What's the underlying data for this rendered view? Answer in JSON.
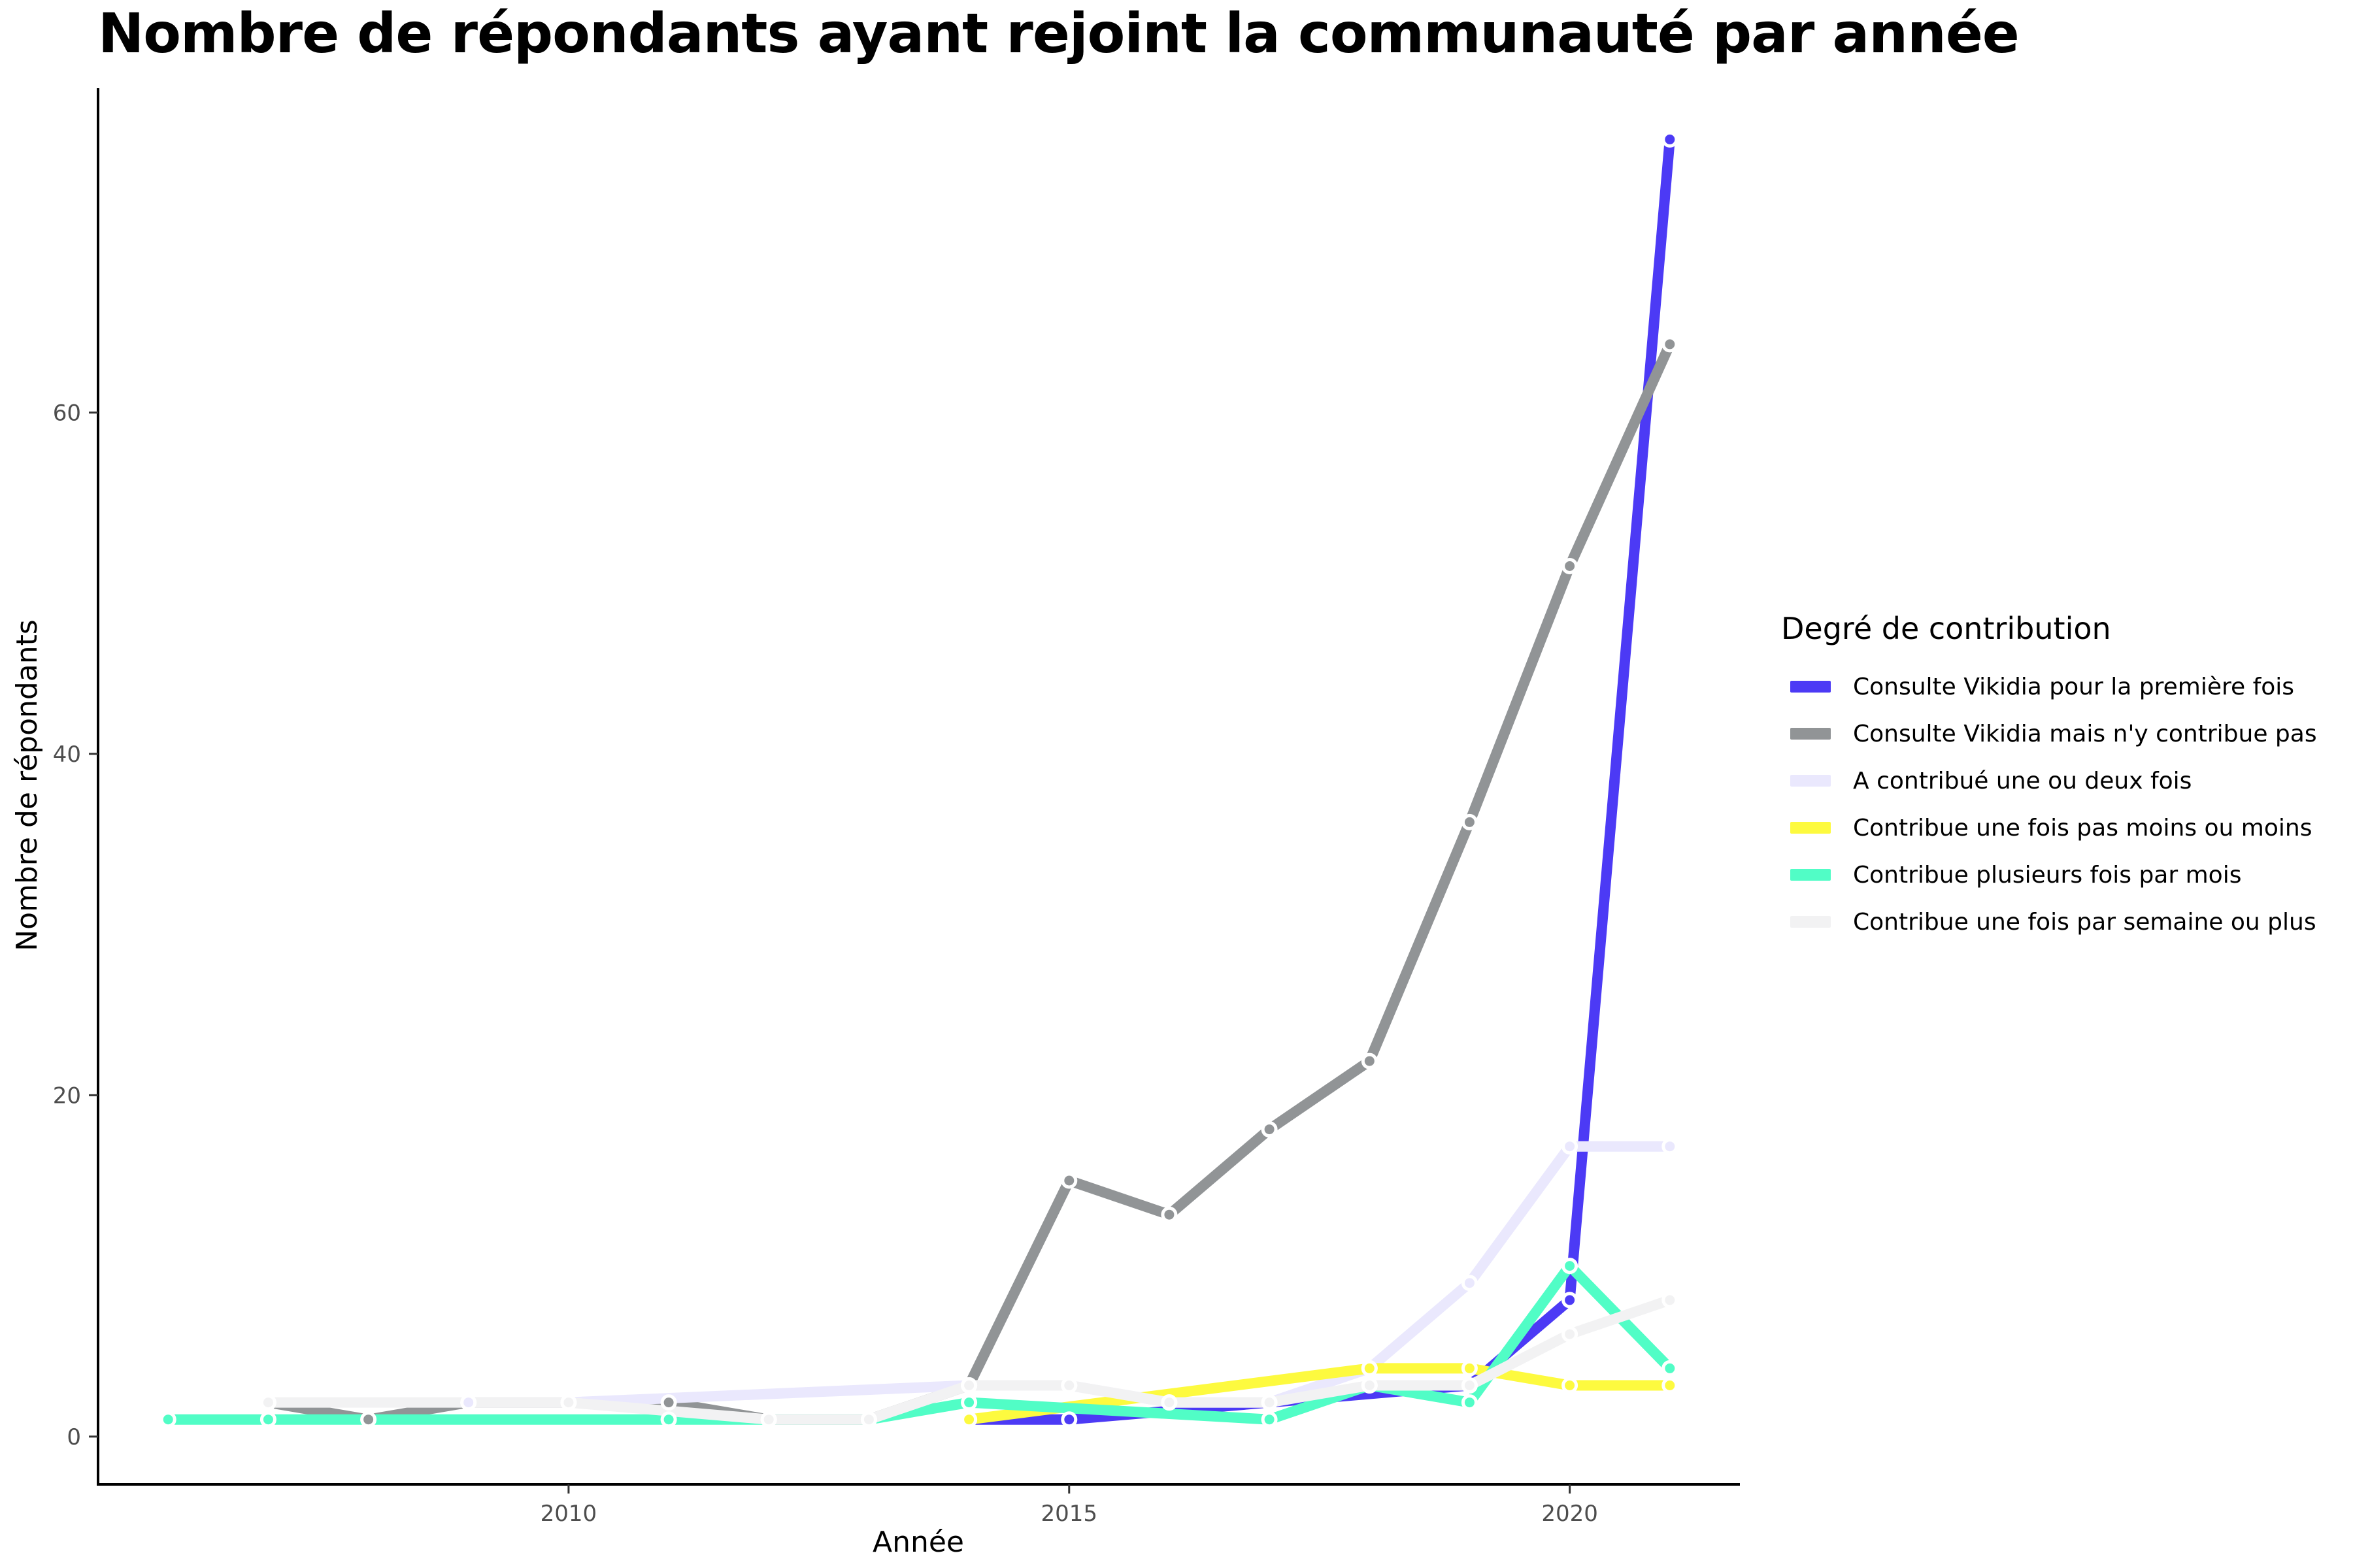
{
  "chart_data": {
    "type": "line",
    "title": "Nombre de répondants ayant rejoint la communauté par année",
    "xlabel": "Année",
    "ylabel": "Nombre de répondants",
    "xlim": [
      2005.3,
      2021.7
    ],
    "ylim": [
      -2.8,
      79
    ],
    "x_ticks": [
      2010,
      2015,
      2020
    ],
    "y_ticks": [
      0,
      20,
      40,
      60
    ],
    "grid": false,
    "legend_title": "Degré de contribution",
    "legend_position": "right",
    "series": [
      {
        "name": "Consulte Vikidia pour la première fois",
        "color": "#4c3af5",
        "x": [
          2014,
          2015,
          2019,
          2020,
          2021
        ],
        "y": [
          1,
          1,
          3,
          8,
          76
        ]
      },
      {
        "name": "Consulte Vikidia mais n'y contribue pas",
        "color": "#919496",
        "x": [
          2007,
          2008,
          2009,
          2010,
          2011,
          2012,
          2013,
          2014,
          2015,
          2016,
          2017,
          2018,
          2019,
          2020,
          2021
        ],
        "y": [
          2,
          1,
          2,
          2,
          2,
          1,
          1,
          3,
          15,
          13,
          18,
          22,
          36,
          51,
          64
        ]
      },
      {
        "name": "A contribué une ou deux fois",
        "color": "#eae8fd",
        "x": [
          2009,
          2010,
          2014,
          2015,
          2016,
          2017,
          2018,
          2019,
          2020,
          2021
        ],
        "y": [
          2,
          2,
          3,
          3,
          2,
          2,
          4,
          9,
          17,
          17
        ]
      },
      {
        "name": "Contribue une fois pas moins ou moins",
        "color": "#fdfa3f",
        "x": [
          2014,
          2018,
          2019,
          2020,
          2021
        ],
        "y": [
          1,
          4,
          4,
          3,
          3
        ]
      },
      {
        "name": "Contribue plusieurs fois par mois",
        "color": "#51fdc6",
        "x": [
          2006,
          2007,
          2011,
          2012,
          2013,
          2014,
          2017,
          2018,
          2019,
          2020,
          2021
        ],
        "y": [
          1,
          1,
          1,
          1,
          1,
          2,
          1,
          3,
          2,
          10,
          4
        ]
      },
      {
        "name": "Contribue une fois par semaine ou plus",
        "color": "#f2f2f3",
        "x": [
          2007,
          2010,
          2012,
          2013,
          2014,
          2015,
          2016,
          2017,
          2018,
          2019,
          2020,
          2021
        ],
        "y": [
          2,
          2,
          1,
          1,
          3,
          3,
          2,
          2,
          3,
          3,
          6,
          8
        ]
      }
    ]
  }
}
